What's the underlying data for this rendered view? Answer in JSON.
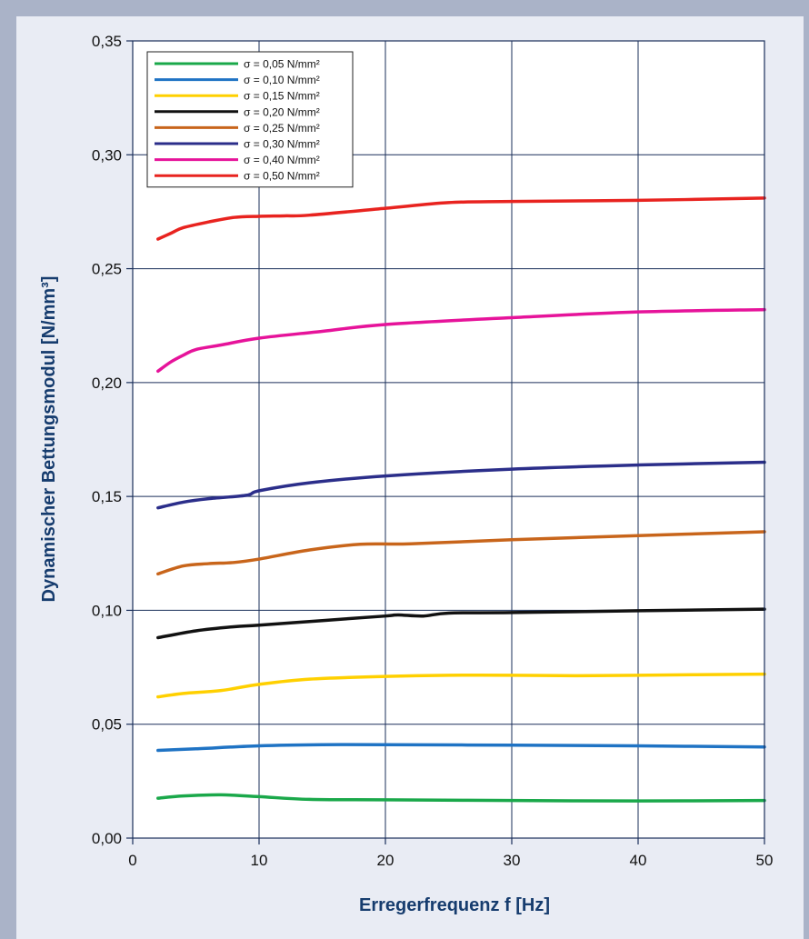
{
  "chart_data": {
    "type": "line",
    "title": "",
    "xlabel": "Erregerfrequenz f [Hz]",
    "ylabel": "Dynamischer Bettungsmodul [N/mm³]",
    "xlim": [
      0,
      50
    ],
    "ylim": [
      0,
      0.35
    ],
    "x_ticks": [
      0,
      10,
      20,
      30,
      40,
      50
    ],
    "x_tick_labels": [
      "0",
      "10",
      "20",
      "30",
      "40",
      "50"
    ],
    "y_ticks": [
      0,
      0.05,
      0.1,
      0.15,
      0.2,
      0.25,
      0.3,
      0.35
    ],
    "y_tick_labels": [
      "0,00",
      "0,05",
      "0,10",
      "0,15",
      "0,20",
      "0,25",
      "0,30",
      "0,35"
    ],
    "grid": true,
    "legend_position": "top-left",
    "series": [
      {
        "name": "σ = 0,05 N/mm²",
        "color": "#1aa84a",
        "x": [
          2,
          4,
          7,
          10,
          14,
          20,
          30,
          40,
          50
        ],
        "y": [
          0.0175,
          0.0185,
          0.019,
          0.0182,
          0.017,
          0.0168,
          0.0165,
          0.0163,
          0.0165
        ]
      },
      {
        "name": "σ = 0,10 N/mm²",
        "color": "#1f73c4",
        "x": [
          2,
          5,
          10,
          15,
          20,
          30,
          40,
          50
        ],
        "y": [
          0.0385,
          0.0392,
          0.0405,
          0.041,
          0.041,
          0.0408,
          0.0405,
          0.04
        ]
      },
      {
        "name": "σ = 0,15 N/mm²",
        "color": "#ffd000",
        "x": [
          2,
          4,
          7,
          10,
          14,
          20,
          25,
          30,
          35,
          40,
          50
        ],
        "y": [
          0.062,
          0.0635,
          0.0648,
          0.0675,
          0.0698,
          0.071,
          0.0715,
          0.0715,
          0.0713,
          0.0715,
          0.072
        ]
      },
      {
        "name": "σ = 0,20 N/mm²",
        "color": "#111111",
        "x": [
          2,
          5,
          8,
          10,
          15,
          20,
          21,
          23,
          25,
          30,
          40,
          50
        ],
        "y": [
          0.088,
          0.091,
          0.0928,
          0.0935,
          0.0955,
          0.0975,
          0.098,
          0.0975,
          0.0988,
          0.099,
          0.0998,
          0.1005
        ]
      },
      {
        "name": "σ = 0,25 N/mm²",
        "color": "#c8651b",
        "x": [
          2,
          4,
          6,
          8,
          10,
          14,
          18,
          22,
          30,
          40,
          50
        ],
        "y": [
          0.116,
          0.1195,
          0.1205,
          0.121,
          0.1225,
          0.1265,
          0.129,
          0.1292,
          0.131,
          0.1328,
          0.1345
        ]
      },
      {
        "name": "σ = 0,30 N/mm²",
        "color": "#2b2e8a",
        "x": [
          2,
          4,
          6,
          9,
          10,
          14,
          20,
          30,
          40,
          50
        ],
        "y": [
          0.145,
          0.1475,
          0.149,
          0.1505,
          0.1525,
          0.156,
          0.159,
          0.162,
          0.1638,
          0.165
        ]
      },
      {
        "name": "σ = 0,40 N/mm²",
        "color": "#e6139a",
        "x": [
          2,
          3,
          4,
          5,
          7,
          10,
          15,
          20,
          30,
          40,
          50
        ],
        "y": [
          0.205,
          0.209,
          0.212,
          0.2145,
          0.2165,
          0.2195,
          0.2225,
          0.2255,
          0.2285,
          0.231,
          0.232
        ]
      },
      {
        "name": "σ = 0,50 N/mm²",
        "color": "#e8231f",
        "x": [
          2,
          3,
          4,
          6,
          8,
          10,
          12,
          14,
          20,
          25,
          30,
          40,
          50
        ],
        "y": [
          0.263,
          0.2655,
          0.268,
          0.2705,
          0.2725,
          0.273,
          0.2732,
          0.2735,
          0.2765,
          0.279,
          0.2795,
          0.28,
          0.281
        ]
      }
    ]
  }
}
